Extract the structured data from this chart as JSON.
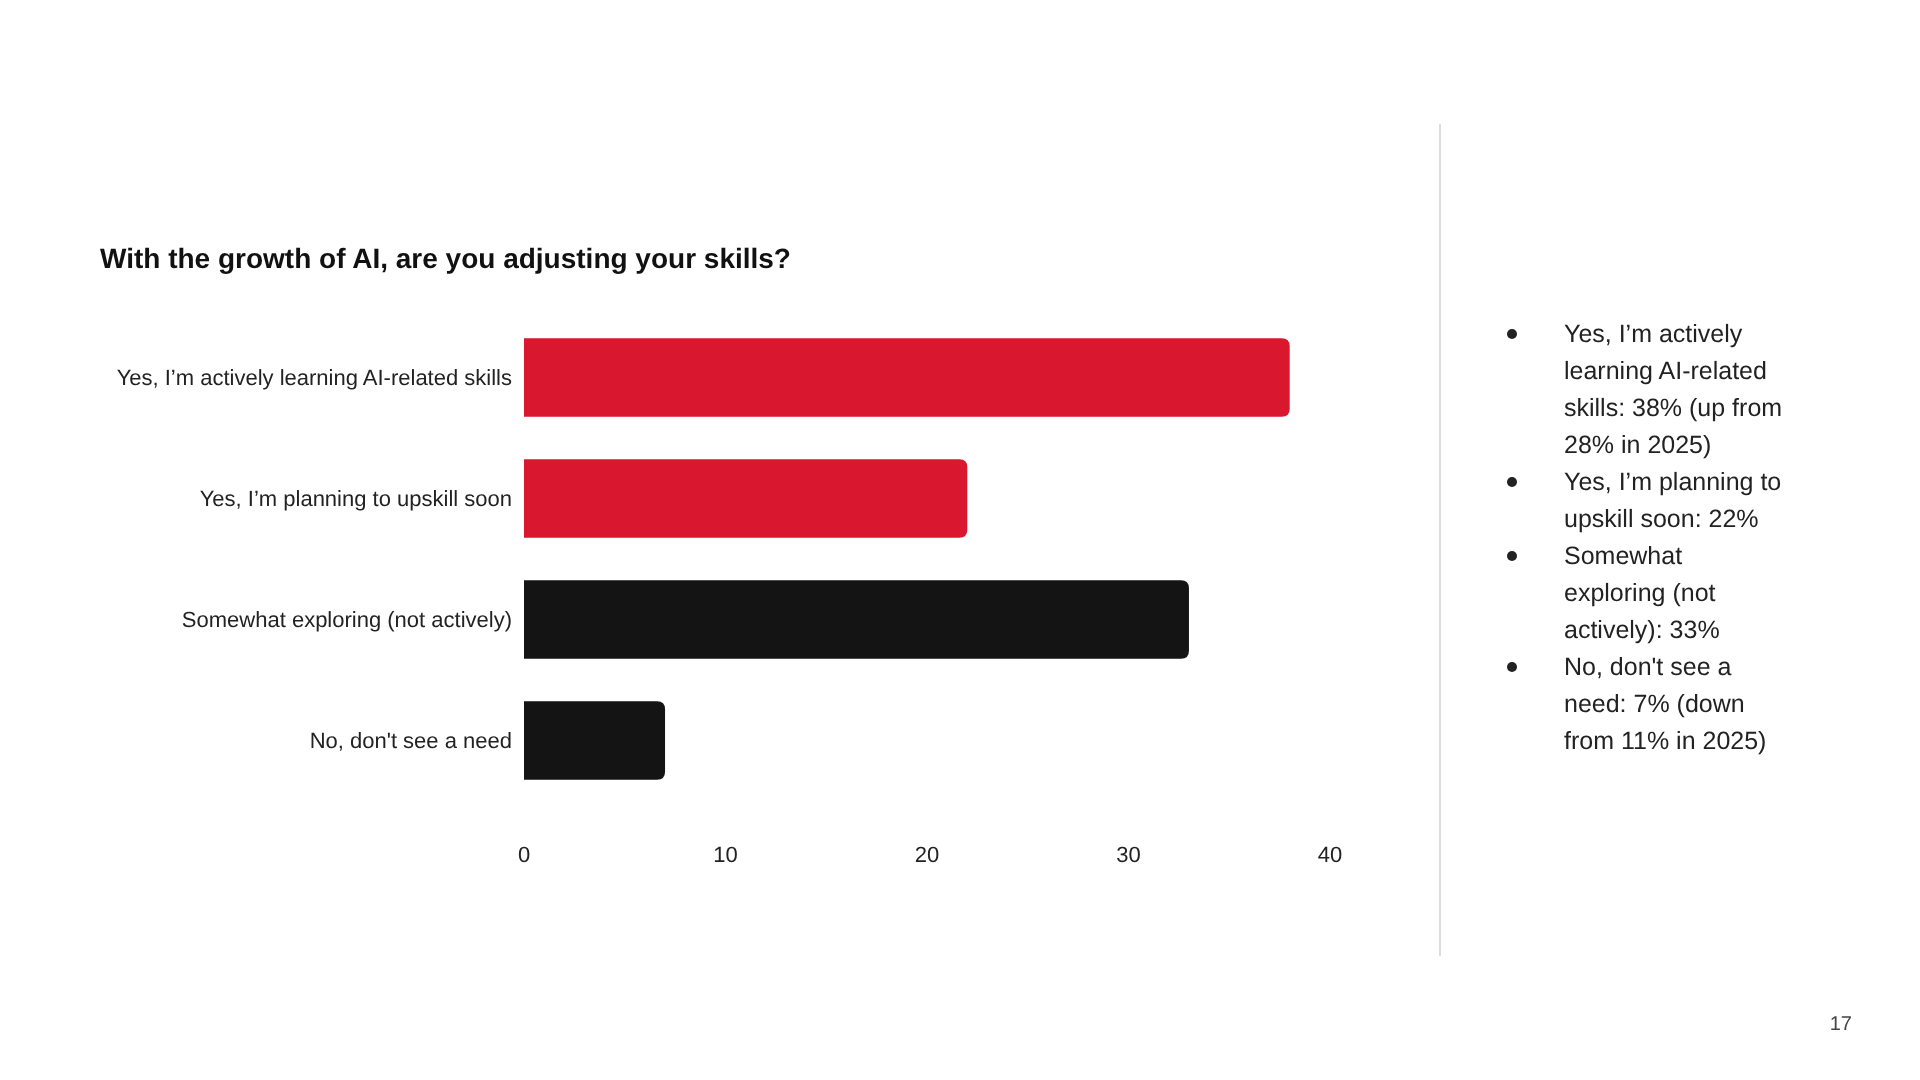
{
  "chart_data": {
    "type": "bar",
    "orientation": "horizontal",
    "title": "With the growth of AI, are you adjusting your skills?",
    "categories": [
      "Yes, I’m actively learning AI-related skills",
      "Yes, I’m planning to upskill soon",
      "Somewhat exploring (not actively)",
      "No, don't see a need"
    ],
    "values": [
      38,
      22,
      33,
      7
    ],
    "colors": [
      "#d9172e",
      "#d9172e",
      "#141414",
      "#141414"
    ],
    "xlim": [
      0,
      40
    ],
    "xticks": [
      0,
      10,
      20,
      30,
      40
    ],
    "grid": false,
    "annotations": [
      "Yes, I’m actively learning AI-related skills: 38% (up from 28% in 2025)",
      "Yes, I’m planning to upskill soon: 22%",
      "Somewhat exploring (not actively): 33%",
      "No, don't see a need: 7% (down from 11% in 2025)",
      "17"
    ]
  }
}
